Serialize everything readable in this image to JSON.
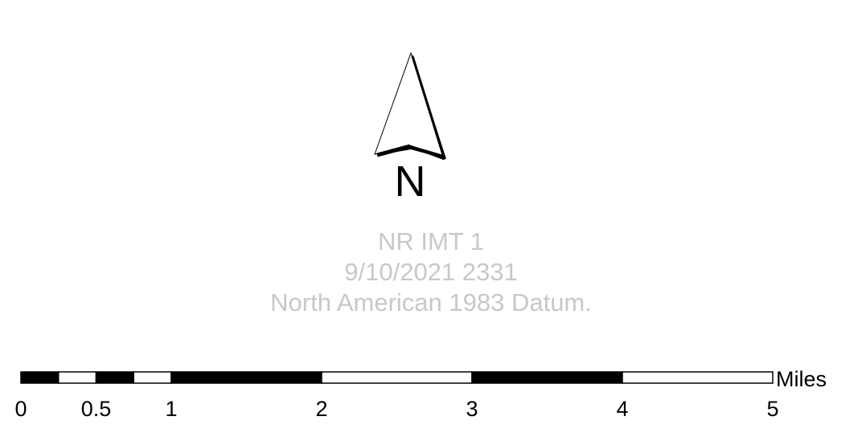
{
  "north_arrow": {
    "label": "N",
    "icon": "north-arrow-icon"
  },
  "map_info": {
    "title": "NR IMT 1",
    "datetime": "9/10/2021 2331",
    "datum": "North American 1983 Datum."
  },
  "scale_bar": {
    "unit_label": "Miles",
    "segments": [
      {
        "from": 0,
        "to": 0.25,
        "fill": "#000000"
      },
      {
        "from": 0.25,
        "to": 0.5,
        "fill": "#ffffff"
      },
      {
        "from": 0.5,
        "to": 0.75,
        "fill": "#000000"
      },
      {
        "from": 0.75,
        "to": 1,
        "fill": "#ffffff"
      },
      {
        "from": 1,
        "to": 2,
        "fill": "#000000"
      },
      {
        "from": 2,
        "to": 3,
        "fill": "#ffffff"
      },
      {
        "from": 3,
        "to": 4,
        "fill": "#000000"
      },
      {
        "from": 4,
        "to": 5,
        "fill": "#ffffff"
      }
    ],
    "ticks": [
      {
        "value": 0,
        "label": "0"
      },
      {
        "value": 0.5,
        "label": "0.5"
      },
      {
        "value": 1,
        "label": "1"
      },
      {
        "value": 2,
        "label": "2"
      },
      {
        "value": 3,
        "label": "3"
      },
      {
        "value": 4,
        "label": "4"
      },
      {
        "value": 5,
        "label": "5"
      }
    ]
  },
  "colors": {
    "info_text": "#c8c8c8",
    "ink": "#000000"
  }
}
